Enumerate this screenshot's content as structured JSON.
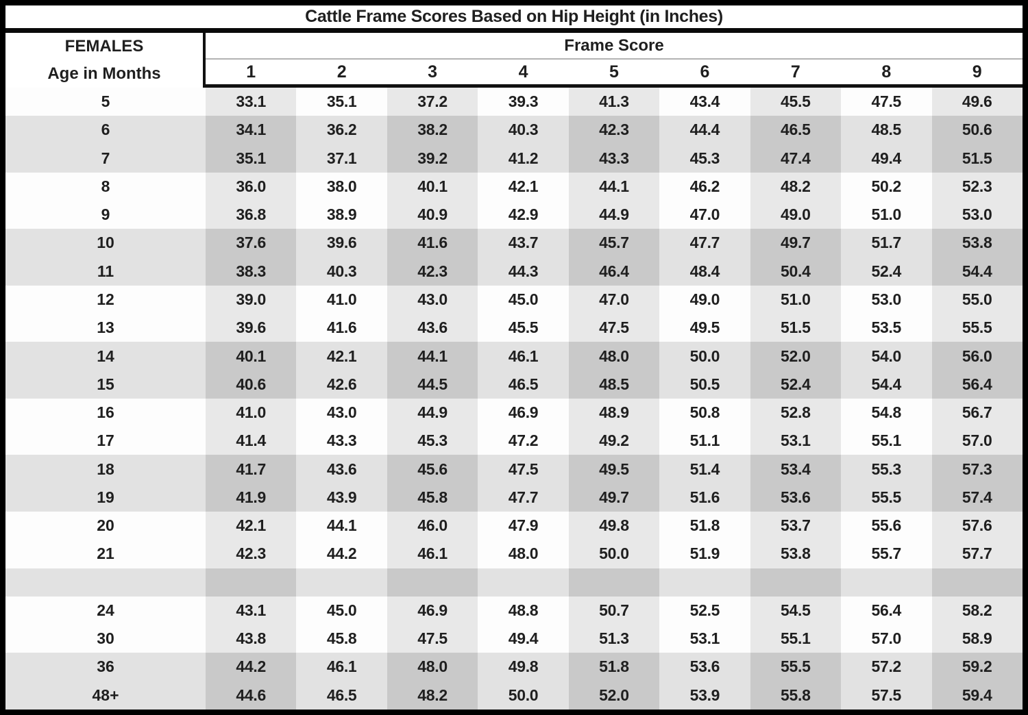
{
  "colors": {
    "border_black": "#0a0a0a",
    "light_row_shaded_cell": "#e8e8e8",
    "light_row_plain_cell": "#fdfdfd",
    "dark_row_shaded_cell": "#c9c9c9",
    "dark_row_plain_cell": "#e2e2e2",
    "text": "#1f1f1f"
  },
  "chart_data": {
    "type": "table",
    "title": "Cattle Frame Scores Based on Hip Height (in Inches)",
    "row_header_title": "FEMALES",
    "row_header_subtitle": "Age in Months",
    "column_group_label": "Frame Score",
    "columns": [
      "1",
      "2",
      "3",
      "4",
      "5",
      "6",
      "7",
      "8",
      "9"
    ],
    "rows": [
      {
        "age": "5",
        "shade": "light",
        "values": [
          "33.1",
          "35.1",
          "37.2",
          "39.3",
          "41.3",
          "43.4",
          "45.5",
          "47.5",
          "49.6"
        ]
      },
      {
        "age": "6",
        "shade": "dark",
        "values": [
          "34.1",
          "36.2",
          "38.2",
          "40.3",
          "42.3",
          "44.4",
          "46.5",
          "48.5",
          "50.6"
        ]
      },
      {
        "age": "7",
        "shade": "dark",
        "values": [
          "35.1",
          "37.1",
          "39.2",
          "41.2",
          "43.3",
          "45.3",
          "47.4",
          "49.4",
          "51.5"
        ]
      },
      {
        "age": "8",
        "shade": "light",
        "values": [
          "36.0",
          "38.0",
          "40.1",
          "42.1",
          "44.1",
          "46.2",
          "48.2",
          "50.2",
          "52.3"
        ]
      },
      {
        "age": "9",
        "shade": "light",
        "values": [
          "36.8",
          "38.9",
          "40.9",
          "42.9",
          "44.9",
          "47.0",
          "49.0",
          "51.0",
          "53.0"
        ]
      },
      {
        "age": "10",
        "shade": "dark",
        "values": [
          "37.6",
          "39.6",
          "41.6",
          "43.7",
          "45.7",
          "47.7",
          "49.7",
          "51.7",
          "53.8"
        ]
      },
      {
        "age": "11",
        "shade": "dark",
        "values": [
          "38.3",
          "40.3",
          "42.3",
          "44.3",
          "46.4",
          "48.4",
          "50.4",
          "52.4",
          "54.4"
        ]
      },
      {
        "age": "12",
        "shade": "light",
        "values": [
          "39.0",
          "41.0",
          "43.0",
          "45.0",
          "47.0",
          "49.0",
          "51.0",
          "53.0",
          "55.0"
        ]
      },
      {
        "age": "13",
        "shade": "light",
        "values": [
          "39.6",
          "41.6",
          "43.6",
          "45.5",
          "47.5",
          "49.5",
          "51.5",
          "53.5",
          "55.5"
        ]
      },
      {
        "age": "14",
        "shade": "dark",
        "values": [
          "40.1",
          "42.1",
          "44.1",
          "46.1",
          "48.0",
          "50.0",
          "52.0",
          "54.0",
          "56.0"
        ]
      },
      {
        "age": "15",
        "shade": "dark",
        "values": [
          "40.6",
          "42.6",
          "44.5",
          "46.5",
          "48.5",
          "50.5",
          "52.4",
          "54.4",
          "56.4"
        ]
      },
      {
        "age": "16",
        "shade": "light",
        "values": [
          "41.0",
          "43.0",
          "44.9",
          "46.9",
          "48.9",
          "50.8",
          "52.8",
          "54.8",
          "56.7"
        ]
      },
      {
        "age": "17",
        "shade": "light",
        "values": [
          "41.4",
          "43.3",
          "45.3",
          "47.2",
          "49.2",
          "51.1",
          "53.1",
          "55.1",
          "57.0"
        ]
      },
      {
        "age": "18",
        "shade": "dark",
        "values": [
          "41.7",
          "43.6",
          "45.6",
          "47.5",
          "49.5",
          "51.4",
          "53.4",
          "55.3",
          "57.3"
        ]
      },
      {
        "age": "19",
        "shade": "dark",
        "values": [
          "41.9",
          "43.9",
          "45.8",
          "47.7",
          "49.7",
          "51.6",
          "53.6",
          "55.5",
          "57.4"
        ]
      },
      {
        "age": "20",
        "shade": "light",
        "values": [
          "42.1",
          "44.1",
          "46.0",
          "47.9",
          "49.8",
          "51.8",
          "53.7",
          "55.6",
          "57.6"
        ]
      },
      {
        "age": "21",
        "shade": "light",
        "values": [
          "42.3",
          "44.2",
          "46.1",
          "48.0",
          "50.0",
          "51.9",
          "53.8",
          "55.7",
          "57.7"
        ]
      },
      {
        "age": "",
        "shade": "dark",
        "values": [
          "",
          "",
          "",
          "",
          "",
          "",
          "",
          "",
          ""
        ]
      },
      {
        "age": "24",
        "shade": "light",
        "values": [
          "43.1",
          "45.0",
          "46.9",
          "48.8",
          "50.7",
          "52.5",
          "54.5",
          "56.4",
          "58.2"
        ]
      },
      {
        "age": "30",
        "shade": "light",
        "values": [
          "43.8",
          "45.8",
          "47.5",
          "49.4",
          "51.3",
          "53.1",
          "55.1",
          "57.0",
          "58.9"
        ]
      },
      {
        "age": "36",
        "shade": "dark",
        "values": [
          "44.2",
          "46.1",
          "48.0",
          "49.8",
          "51.8",
          "53.6",
          "55.5",
          "57.2",
          "59.2"
        ]
      },
      {
        "age": "48+",
        "shade": "dark",
        "values": [
          "44.6",
          "46.5",
          "48.2",
          "50.0",
          "52.0",
          "53.9",
          "55.8",
          "57.5",
          "59.4"
        ]
      }
    ]
  }
}
